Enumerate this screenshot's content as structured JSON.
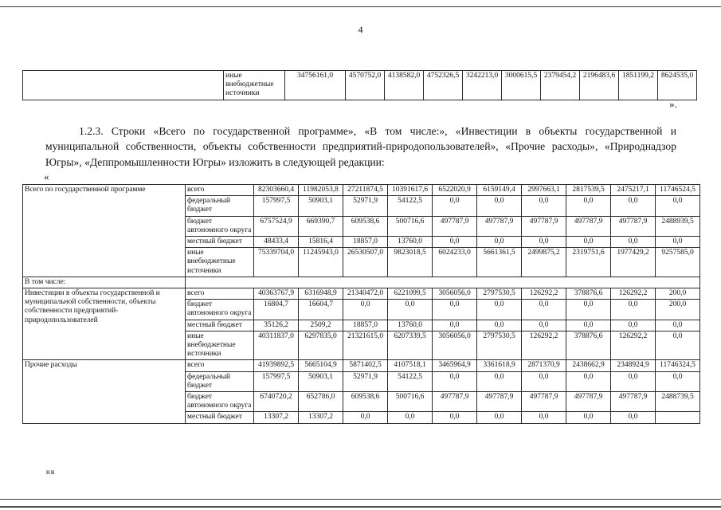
{
  "page": {
    "number": "4",
    "closing_mark": "».",
    "opening_mark": "«",
    "footer_note": "нв"
  },
  "intro_paragraph": "1.2.3. Строки «Всего по государственной программе», «В том числе:», «Инвестиции в объекты государственной и муниципальной собственности, объекты собственности предприятий-природопользователей», «Прочие расходы», «Природнадзор Югры», «Деппромышленности Югры» изложить в следующей редакции:",
  "top_table": {
    "row_label": "иные внебюджетные источники",
    "values": [
      "34756161,0",
      "4570752,0",
      "4138582,0",
      "4752326,5",
      "3242213,0",
      "3000615,5",
      "2379454,2",
      "2196483,6",
      "1851199,2",
      "8624535,0"
    ]
  },
  "main_table": {
    "groups": [
      {
        "name": "Всего по государственной программе",
        "rows": [
          {
            "type": "всего",
            "values": [
              "82303660,4",
              "11982053,8",
              "27211874,5",
              "10391617,6",
              "6522020,9",
              "6159149,4",
              "2997663,1",
              "2817539,5",
              "2475217,1",
              "11746524,5"
            ]
          },
          {
            "type": "федеральный бюджет",
            "values": [
              "157997,5",
              "50903,1",
              "52971,9",
              "54122,5",
              "0,0",
              "0,0",
              "0,0",
              "0,0",
              "0,0",
              "0,0"
            ]
          },
          {
            "type": "бюджет автономного округа",
            "values": [
              "6757524,9",
              "669390,7",
              "609538,6",
              "500716,6",
              "497787,9",
              "497787,9",
              "497787,9",
              "497787,9",
              "497787,9",
              "2488939,5"
            ]
          },
          {
            "type": "местный бюджет",
            "values": [
              "48433,4",
              "15816,4",
              "18857,0",
              "13760,0",
              "0,0",
              "0,0",
              "0,0",
              "0,0",
              "0,0",
              "0,0"
            ]
          },
          {
            "type": "иные внебюджетные источники",
            "values": [
              "75339704,0",
              "11245943,0",
              "26530507,0",
              "9823018,5",
              "6024233,0",
              "5661361,5",
              "2499875,2",
              "2319751,6",
              "1977429,2",
              "9257585,0"
            ]
          }
        ]
      },
      {
        "full_row": true,
        "name": "В том числе:"
      },
      {
        "name": "Инвестиции в объекты государственной и муниципальной собственности, объекты собственности предприятий-природопользователей",
        "rows": [
          {
            "type": "всего",
            "values": [
              "40363767,9",
              "6316948,9",
              "21340472,0",
              "6221099,5",
              "3056056,0",
              "2797530,5",
              "126292,2",
              "378876,6",
              "126292,2",
              "200,0"
            ]
          },
          {
            "type": "бюджет автономного округа",
            "values": [
              "16804,7",
              "16604,7",
              "0,0",
              "0,0",
              "0,0",
              "0,0",
              "0,0",
              "0,0",
              "0,0",
              "200,0"
            ]
          },
          {
            "type": "местный бюджет",
            "values": [
              "35126,2",
              "2509,2",
              "18857,0",
              "13760,0",
              "0,0",
              "0,0",
              "0,0",
              "0,0",
              "0,0",
              "0,0"
            ]
          },
          {
            "type": "иные внебюджетные источники",
            "values": [
              "40311837,0",
              "6297835,0",
              "21321615,0",
              "6207339,5",
              "3056056,0",
              "2797530,5",
              "126292,2",
              "378876,6",
              "126292,2",
              "0,0"
            ]
          }
        ]
      },
      {
        "name": "Прочие расходы",
        "rows": [
          {
            "type": "всего",
            "values": [
              "41939892,5",
              "5665104,9",
              "5871402,5",
              "4107518,1",
              "3465964,9",
              "3361618,9",
              "2871370,9",
              "2438662,9",
              "2348924,9",
              "11746324,5"
            ]
          },
          {
            "type": "федеральный бюджет",
            "values": [
              "157997,5",
              "50903,1",
              "52971,9",
              "54122,5",
              "0,0",
              "0,0",
              "0,0",
              "0,0",
              "0,0",
              "0,0"
            ]
          },
          {
            "type": "бюджет автономного округа",
            "values": [
              "6740720,2",
              "652786,0",
              "609538,6",
              "500716,6",
              "497787,9",
              "497787,9",
              "497787,9",
              "497787,9",
              "497787,9",
              "2488739,5"
            ]
          },
          {
            "type": "местный бюджет",
            "values": [
              "13307,2",
              "13307,2",
              "0,0",
              "0,0",
              "0,0",
              "0,0",
              "0,0",
              "0,0",
              "0,0",
              ""
            ]
          }
        ]
      }
    ]
  }
}
